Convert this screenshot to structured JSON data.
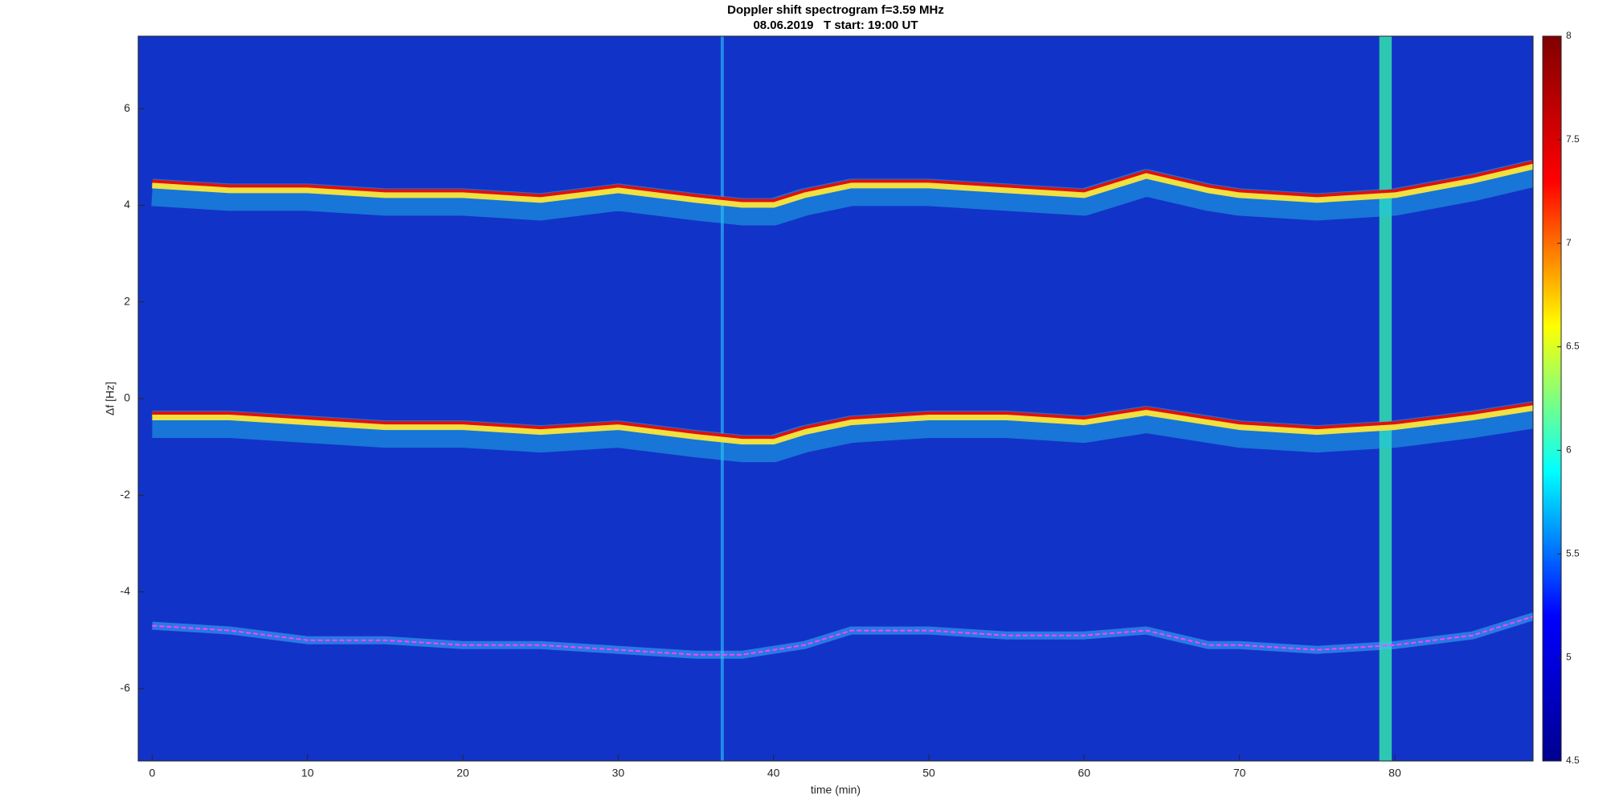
{
  "chart_data": {
    "type": "spectrogram",
    "title": "Doppler shift spectrogram f=3.59 MHz",
    "subtitle": "08.06.2019   T start: 19:00 UT",
    "x_label": "time (min)",
    "y_label": "Δf [Hz]",
    "xlim": [
      -0.9,
      88.9
    ],
    "xticks": [
      0,
      10,
      20,
      30,
      40,
      50,
      60,
      70,
      80
    ],
    "ylim": [
      -7.5,
      7.5
    ],
    "yticks": [
      -6,
      -4,
      -2,
      0,
      2,
      4,
      6
    ],
    "background_color": "#1233c8",
    "x": [
      0,
      5,
      10,
      15,
      20,
      25,
      30,
      35,
      38,
      40,
      42,
      45,
      50,
      55,
      60,
      64,
      68,
      70,
      75,
      80,
      85,
      89
    ],
    "series": [
      {
        "color": "#e01010",
        "values": [
          4.5,
          4.4,
          4.4,
          4.3,
          4.3,
          4.2,
          4.4,
          4.2,
          4.1,
          4.1,
          4.3,
          4.5,
          4.5,
          4.4,
          4.3,
          4.7,
          4.4,
          4.3,
          4.2,
          4.3,
          4.6,
          4.9
        ]
      },
      {
        "color": "#e01010",
        "values": [
          -0.3,
          -0.3,
          -0.4,
          -0.5,
          -0.5,
          -0.6,
          -0.5,
          -0.7,
          -0.8,
          -0.8,
          -0.6,
          -0.4,
          -0.3,
          -0.3,
          -0.4,
          -0.2,
          -0.4,
          -0.5,
          -0.6,
          -0.5,
          -0.3,
          -0.1
        ]
      },
      {
        "color": "#ff40ff",
        "values": [
          -4.7,
          -4.8,
          -5.0,
          -5.0,
          -5.1,
          -5.1,
          -5.2,
          -5.3,
          -5.3,
          -5.2,
          -5.1,
          -4.8,
          -4.8,
          -4.9,
          -4.9,
          -4.8,
          -5.1,
          -5.1,
          -5.2,
          -5.1,
          -4.9,
          -4.5
        ]
      }
    ],
    "bursts": [
      {
        "x": 79.4,
        "width": 0.8,
        "color": "#30d0b0"
      },
      {
        "x": 36.7,
        "width": 0.2,
        "color": "#30c8ff"
      }
    ],
    "colormap": [
      "#00008f",
      "#0000ff",
      "#00ffff",
      "#ffff00",
      "#ff0000",
      "#800000"
    ],
    "clim": [
      4.5,
      8
    ],
    "cticks": [
      4.5,
      5,
      5.5,
      6,
      6.5,
      7,
      7.5,
      8
    ]
  }
}
